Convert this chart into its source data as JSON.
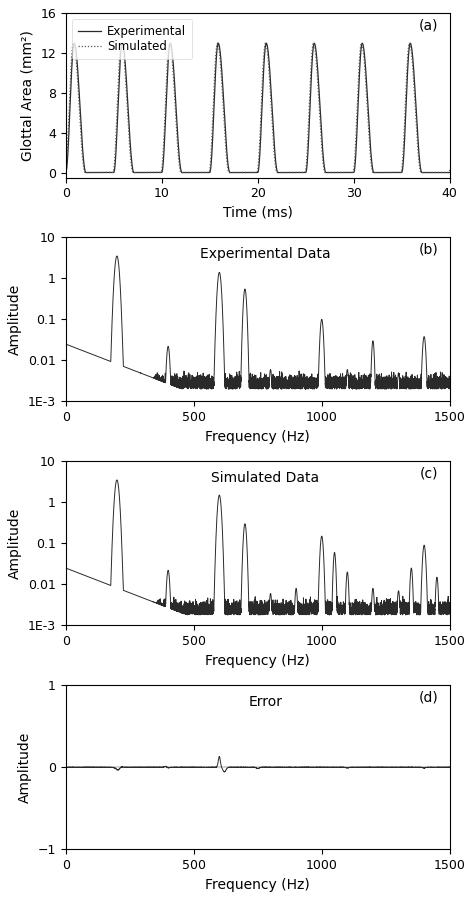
{
  "panel_a": {
    "title": "(a)",
    "xlabel": "Time (ms)",
    "ylabel": "Glottal Area (mm²)",
    "xlim": [
      0,
      40
    ],
    "ylim": [
      -0.5,
      16
    ],
    "yticks": [
      0,
      4,
      8,
      12,
      16
    ],
    "xticks": [
      0,
      10,
      20,
      30,
      40
    ],
    "legend_experimental": "Experimental",
    "legend_simulated": "Simulated"
  },
  "panel_b": {
    "title": "Experimental Data",
    "panel_label": "(b)",
    "xlabel": "Frequency (Hz)",
    "ylabel": "Amplitude",
    "xlim": [
      0,
      1500
    ],
    "ylim": [
      0.001,
      10
    ],
    "xticks": [
      0,
      500,
      1000,
      1500
    ],
    "yticks": [
      0.001,
      0.01,
      0.1,
      1,
      10
    ],
    "yticklabels": [
      "1E-3",
      "0.01",
      "0.1",
      "1",
      "10"
    ]
  },
  "panel_c": {
    "title": "Simulated Data",
    "panel_label": "(c)",
    "xlabel": "Frequency (Hz)",
    "ylabel": "Amplitude",
    "xlim": [
      0,
      1500
    ],
    "ylim": [
      0.001,
      10
    ],
    "xticks": [
      0,
      500,
      1000,
      1500
    ],
    "yticks": [
      0.001,
      0.01,
      0.1,
      1,
      10
    ],
    "yticklabels": [
      "1E-3",
      "0.01",
      "0.1",
      "1",
      "10"
    ]
  },
  "panel_d": {
    "title": "Error",
    "panel_label": "(d)",
    "xlabel": "Frequency (Hz)",
    "ylabel": "Amplitude",
    "xlim": [
      0,
      1500
    ],
    "ylim": [
      -1,
      1
    ],
    "xticks": [
      0,
      500,
      1000,
      1500
    ],
    "yticks": [
      -1,
      0,
      1
    ]
  },
  "line_color": "#2a2a2a",
  "background_color": "#ffffff",
  "fontsize_label": 10,
  "fontsize_tick": 9
}
